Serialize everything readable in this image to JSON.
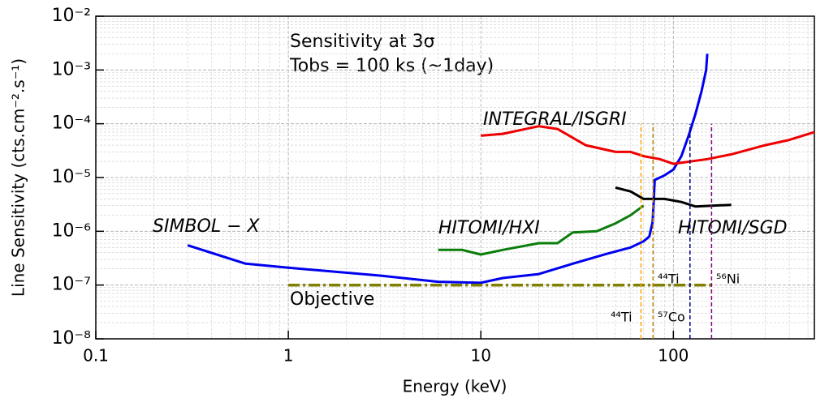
{
  "chart_data": {
    "type": "line",
    "annotations": [
      "Sensitivity at 3σ",
      "Tobs = 100 ks (~1day)"
    ],
    "xlabel": "Energy (keV)",
    "ylabel": "Line Sensitivity (cts.cm⁻².s⁻¹)",
    "xscale": "log",
    "yscale": "log",
    "grid": true,
    "xlim": [
      0.1,
      540
    ],
    "ylim": [
      1e-08,
      0.01
    ],
    "xticks": [
      0.1,
      1,
      10,
      100
    ],
    "yticks": [
      {
        "value": 1e-08,
        "label": "10⁻⁸"
      },
      {
        "value": 1e-07,
        "label": "10⁻⁷"
      },
      {
        "value": 1e-06,
        "label": "10⁻⁶"
      },
      {
        "value": 1e-05,
        "label": "10⁻⁵"
      },
      {
        "value": 0.0001,
        "label": "10⁻⁴"
      },
      {
        "value": 0.001,
        "label": "10⁻³"
      },
      {
        "value": 0.01,
        "label": "10⁻²"
      }
    ],
    "series": [
      {
        "name": "SIMBOL − X",
        "color": "#0000ee",
        "style": "solid",
        "x": [
          0.3,
          0.6,
          1,
          3,
          6,
          10,
          13,
          20,
          30,
          45,
          60,
          70,
          75,
          78,
          80,
          90,
          100,
          110,
          120,
          130,
          140,
          148,
          150
        ],
        "values": [
          5.5e-07,
          2.5e-07,
          2.1e-07,
          1.5e-07,
          1.15e-07,
          1.1e-07,
          1.35e-07,
          1.6e-07,
          2.5e-07,
          3.8e-07,
          5e-07,
          6.5e-07,
          8e-07,
          1.5e-06,
          9e-06,
          1.1e-05,
          1.4e-05,
          2.5e-05,
          6e-05,
          0.00015,
          0.0004,
          0.001,
          0.002
        ]
      },
      {
        "name": "INTEGRAL/ISGRI",
        "color": "#ee0000",
        "style": "solid",
        "x": [
          10,
          13,
          20,
          25,
          35,
          50,
          60,
          70,
          85,
          100,
          150,
          200,
          300,
          400,
          540
        ],
        "values": [
          6e-05,
          6.5e-05,
          9e-05,
          8e-05,
          4e-05,
          3e-05,
          3e-05,
          2.5e-05,
          2.2e-05,
          1.8e-05,
          2.2e-05,
          2.7e-05,
          4e-05,
          5e-05,
          7e-05
        ]
      },
      {
        "name": "HITOMI/HXI",
        "color": "#0a7d0a",
        "style": "solid",
        "x": [
          6,
          8,
          10,
          13,
          20,
          25,
          30,
          40,
          50,
          60,
          70
        ],
        "values": [
          4.5e-07,
          4.5e-07,
          3.7e-07,
          4.5e-07,
          6e-07,
          6e-07,
          9.5e-07,
          1e-06,
          1.4e-06,
          2e-06,
          3e-06
        ]
      },
      {
        "name": "HITOMI/SGD",
        "color": "#000000",
        "style": "solid",
        "x": [
          50,
          60,
          70,
          90,
          110,
          130,
          200
        ],
        "values": [
          6.5e-06,
          5.5e-06,
          4e-06,
          4e-06,
          3.5e-06,
          2.9e-06,
          3.1e-06
        ]
      },
      {
        "name": "Objective",
        "color": "#808000",
        "style": "dashdot",
        "x": [
          1,
          160
        ],
        "values": [
          1e-07,
          1e-07
        ]
      },
      {
        "name": "⁴⁴Ti",
        "color": "#ffa500",
        "style": "dashed",
        "x": [
          67.9,
          67.9
        ],
        "values": [
          1e-08,
          0.0001
        ]
      },
      {
        "name": "⁴⁴Ti",
        "color": "#b8860b",
        "style": "dashed",
        "x": [
          78.4,
          78.4
        ],
        "values": [
          1e-08,
          0.0001
        ]
      },
      {
        "name": "⁵⁷Co",
        "color": "#000080",
        "style": "dashed",
        "x": [
          122,
          122
        ],
        "values": [
          1e-08,
          0.0001
        ]
      },
      {
        "name": "⁵⁶Ni",
        "color": "#800080",
        "style": "dashed",
        "x": [
          158,
          158
        ],
        "values": [
          1e-08,
          0.0001
        ]
      }
    ]
  }
}
